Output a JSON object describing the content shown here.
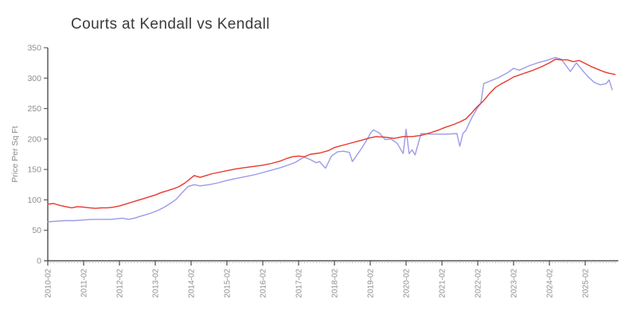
{
  "chart_data": {
    "type": "line",
    "title": "Courts at Kendall vs Kendall",
    "xlabel": "",
    "ylabel": "Price Per Sq Ft",
    "ylim": [
      0,
      350
    ],
    "ytick_labels": [
      "0",
      "50",
      "100",
      "150",
      "200",
      "250",
      "300",
      "350"
    ],
    "xtick_labels": [
      "2010-02",
      "2011-02",
      "2012-02",
      "2013-02",
      "2014-02",
      "2015-02",
      "2016-02",
      "2017-02",
      "2018-02",
      "2019-02",
      "2020-02",
      "2021-02",
      "2022-02",
      "2023-02",
      "2024-02",
      "2025-02"
    ],
    "minor_xticks": "monthly",
    "x_start": "2010-02",
    "x_end": "2025-12",
    "grid": false,
    "legend_position": "none",
    "colors": {
      "axis": "#2f2f2f",
      "major_tick": "#555555",
      "minor_tick": "#b5b5b5",
      "tick_label": "#8f8f8f",
      "axis_label": "#8a8a8a",
      "title": "#3b3b3b"
    },
    "series": [
      {
        "name": "Courts at Kendall",
        "color": "#9b9be8",
        "points": [
          [
            "2010-02",
            64
          ],
          [
            "2010-05",
            65
          ],
          [
            "2010-08",
            66
          ],
          [
            "2010-11",
            66
          ],
          [
            "2011-02",
            67
          ],
          [
            "2011-05",
            68
          ],
          [
            "2011-08",
            68
          ],
          [
            "2011-11",
            68
          ],
          [
            "2012-01",
            69
          ],
          [
            "2012-03",
            70
          ],
          [
            "2012-05",
            68
          ],
          [
            "2012-07",
            70
          ],
          [
            "2012-09",
            73
          ],
          [
            "2012-11",
            76
          ],
          [
            "2013-01",
            79
          ],
          [
            "2013-03",
            83
          ],
          [
            "2013-05",
            88
          ],
          [
            "2013-07",
            94
          ],
          [
            "2013-09",
            101
          ],
          [
            "2013-11",
            112
          ],
          [
            "2014-01",
            122
          ],
          [
            "2014-03",
            125
          ],
          [
            "2014-05",
            123
          ],
          [
            "2014-08",
            125
          ],
          [
            "2014-11",
            128
          ],
          [
            "2015-02",
            132
          ],
          [
            "2015-05",
            135
          ],
          [
            "2015-08",
            138
          ],
          [
            "2015-11",
            141
          ],
          [
            "2016-02",
            145
          ],
          [
            "2016-05",
            149
          ],
          [
            "2016-08",
            153
          ],
          [
            "2016-11",
            158
          ],
          [
            "2017-01",
            162
          ],
          [
            "2017-03",
            168
          ],
          [
            "2017-04",
            170
          ],
          [
            "2017-06",
            166
          ],
          [
            "2017-08",
            161
          ],
          [
            "2017-09",
            163
          ],
          [
            "2017-11",
            152
          ],
          [
            "2018-01",
            172
          ],
          [
            "2018-03",
            179
          ],
          [
            "2018-05",
            180
          ],
          [
            "2018-07",
            178
          ],
          [
            "2018-08",
            163
          ],
          [
            "2018-09",
            170
          ],
          [
            "2018-11",
            184
          ],
          [
            "2019-01",
            200
          ],
          [
            "2019-02",
            209
          ],
          [
            "2019-03",
            215
          ],
          [
            "2019-05",
            210
          ],
          [
            "2019-07",
            199
          ],
          [
            "2019-09",
            200
          ],
          [
            "2019-11",
            193
          ],
          [
            "2020-01",
            176
          ],
          [
            "2020-02",
            216
          ],
          [
            "2020-03",
            176
          ],
          [
            "2020-04",
            182
          ],
          [
            "2020-05",
            174
          ],
          [
            "2020-07",
            209
          ],
          [
            "2020-10",
            208
          ],
          [
            "2021-01",
            208
          ],
          [
            "2021-04",
            208
          ],
          [
            "2021-07",
            209
          ],
          [
            "2021-08",
            188
          ],
          [
            "2021-09",
            209
          ],
          [
            "2021-10",
            214
          ],
          [
            "2021-12",
            235
          ],
          [
            "2022-02",
            252
          ],
          [
            "2022-03",
            258
          ],
          [
            "2022-04",
            291
          ],
          [
            "2022-06",
            295
          ],
          [
            "2022-09",
            301
          ],
          [
            "2022-12",
            309
          ],
          [
            "2023-02",
            316
          ],
          [
            "2023-04",
            313
          ],
          [
            "2023-07",
            320
          ],
          [
            "2023-10",
            325
          ],
          [
            "2024-01",
            329
          ],
          [
            "2024-04",
            334
          ],
          [
            "2024-06",
            331
          ],
          [
            "2024-09",
            311
          ],
          [
            "2024-11",
            325
          ],
          [
            "2025-01",
            313
          ],
          [
            "2025-03",
            302
          ],
          [
            "2025-05",
            293
          ],
          [
            "2025-07",
            289
          ],
          [
            "2025-09",
            291
          ],
          [
            "2025-10",
            297
          ],
          [
            "2025-11",
            281
          ]
        ]
      },
      {
        "name": "Kendall",
        "color": "#e8382d",
        "points": [
          [
            "2010-02",
            93
          ],
          [
            "2010-04",
            94
          ],
          [
            "2010-06",
            91
          ],
          [
            "2010-08",
            89
          ],
          [
            "2010-10",
            87
          ],
          [
            "2010-12",
            89
          ],
          [
            "2011-02",
            88
          ],
          [
            "2011-04",
            87
          ],
          [
            "2011-06",
            86
          ],
          [
            "2011-08",
            87
          ],
          [
            "2011-10",
            87
          ],
          [
            "2011-12",
            88
          ],
          [
            "2012-02",
            90
          ],
          [
            "2012-04",
            93
          ],
          [
            "2012-06",
            96
          ],
          [
            "2012-08",
            99
          ],
          [
            "2012-10",
            102
          ],
          [
            "2012-12",
            105
          ],
          [
            "2013-02",
            108
          ],
          [
            "2013-04",
            112
          ],
          [
            "2013-06",
            115
          ],
          [
            "2013-08",
            118
          ],
          [
            "2013-10",
            122
          ],
          [
            "2013-12",
            128
          ],
          [
            "2014-02",
            136
          ],
          [
            "2014-03",
            140
          ],
          [
            "2014-05",
            137
          ],
          [
            "2014-07",
            140
          ],
          [
            "2014-09",
            143
          ],
          [
            "2014-11",
            145
          ],
          [
            "2015-02",
            148
          ],
          [
            "2015-05",
            151
          ],
          [
            "2015-08",
            153
          ],
          [
            "2015-11",
            155
          ],
          [
            "2016-02",
            157
          ],
          [
            "2016-05",
            160
          ],
          [
            "2016-08",
            164
          ],
          [
            "2016-10",
            168
          ],
          [
            "2016-12",
            171
          ],
          [
            "2017-02",
            172
          ],
          [
            "2017-04",
            171
          ],
          [
            "2017-06",
            175
          ],
          [
            "2017-09",
            177
          ],
          [
            "2017-12",
            181
          ],
          [
            "2018-02",
            186
          ],
          [
            "2018-05",
            190
          ],
          [
            "2018-08",
            194
          ],
          [
            "2018-11",
            198
          ],
          [
            "2019-02",
            202
          ],
          [
            "2019-04",
            204
          ],
          [
            "2019-07",
            203
          ],
          [
            "2019-10",
            201
          ],
          [
            "2020-01",
            204
          ],
          [
            "2020-04",
            204
          ],
          [
            "2020-07",
            206
          ],
          [
            "2020-10",
            210
          ],
          [
            "2021-01",
            215
          ],
          [
            "2021-03",
            219
          ],
          [
            "2021-06",
            224
          ],
          [
            "2021-08",
            228
          ],
          [
            "2021-10",
            233
          ],
          [
            "2021-12",
            243
          ],
          [
            "2022-02",
            254
          ],
          [
            "2022-04",
            263
          ],
          [
            "2022-06",
            275
          ],
          [
            "2022-08",
            285
          ],
          [
            "2022-10",
            291
          ],
          [
            "2022-12",
            296
          ],
          [
            "2023-02",
            302
          ],
          [
            "2023-05",
            307
          ],
          [
            "2023-08",
            312
          ],
          [
            "2023-11",
            318
          ],
          [
            "2024-02",
            325
          ],
          [
            "2024-04",
            331
          ],
          [
            "2024-06",
            330
          ],
          [
            "2024-08",
            330
          ],
          [
            "2024-10",
            327
          ],
          [
            "2024-12",
            329
          ],
          [
            "2025-02",
            324
          ],
          [
            "2025-04",
            319
          ],
          [
            "2025-06",
            315
          ],
          [
            "2025-08",
            311
          ],
          [
            "2025-10",
            308
          ],
          [
            "2025-12",
            306
          ]
        ]
      }
    ]
  }
}
